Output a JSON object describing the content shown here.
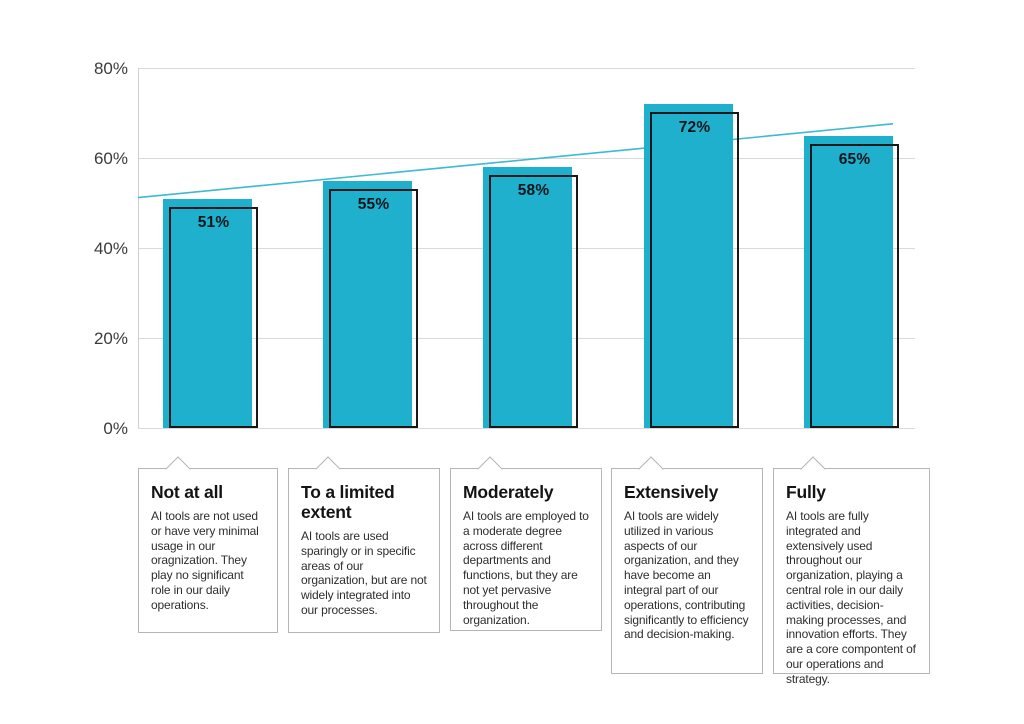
{
  "chart_data": {
    "type": "bar",
    "title": "",
    "xlabel": "",
    "ylabel": "",
    "ylim": [
      0,
      80
    ],
    "grid": true,
    "y_ticks": [
      {
        "value": 80,
        "label": "80%"
      },
      {
        "value": 60,
        "label": "60%"
      },
      {
        "value": 40,
        "label": "40%"
      },
      {
        "value": 20,
        "label": "20%"
      },
      {
        "value": 0,
        "label": "0%"
      }
    ],
    "categories": [
      "Not at all",
      "To a limited extent",
      "Moderately",
      "Extensively",
      "Fully"
    ],
    "values": [
      51,
      55,
      58,
      72,
      65
    ],
    "value_labels": [
      "51%",
      "55%",
      "58%",
      "72%",
      "65%"
    ],
    "trendline": {
      "start_value": 51.2,
      "end_value": 67.6
    },
    "colors": {
      "bar_fill": "#1FB0CD",
      "bar_outline": "#16181a",
      "trend_line": "#3CBAD3",
      "gridline": "#d9d9d9",
      "axis_line": "#cfcfcf",
      "tick_text": "#3c3c3c",
      "value_text": "#0d151b",
      "box_border": "#b5b5b5",
      "title_text": "#141414",
      "description_text": "#2e2e2e"
    }
  },
  "callouts": [
    {
      "title": "Not at all",
      "description": "AI tools are not used or have very minimal usage in our oragnization. They play no significant role in our daily operations."
    },
    {
      "title": "To a limited extent",
      "description": "AI tools are used sparingly or in specific areas of our organization, but are not widely integrated into our processes."
    },
    {
      "title": "Moderately",
      "description": "AI tools are employed to a moderate degree across different departments and functions, but they are not yet pervasive throughout the organization."
    },
    {
      "title": "Extensively",
      "description": "AI tools are widely utilized in various aspects of our organization, and they have become an integral part of our operations, contributing significantly to efficiency and decision-making."
    },
    {
      "title": "Fully",
      "description": "AI tools are fully integrated and extensively used throughout our organization, playing a central role in our daily activities, decision-making processes, and innovation efforts. They are a core compontent of our operations and strategy."
    }
  ]
}
